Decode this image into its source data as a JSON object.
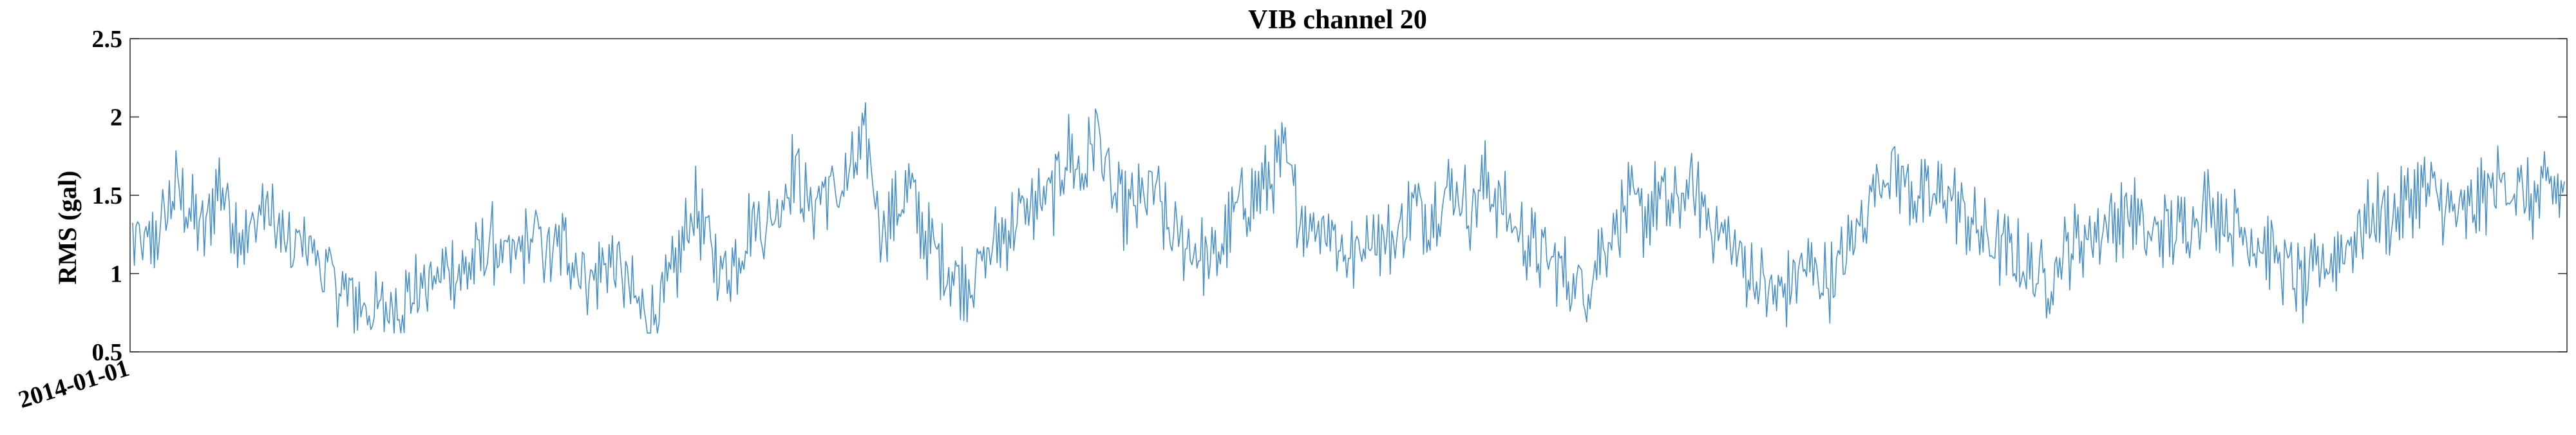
{
  "chart_data": {
    "type": "line",
    "title": "VIB channel 20",
    "xlabel": "",
    "ylabel": "RMS (gal)",
    "ylim": [
      0.5,
      2.5
    ],
    "y_ticks": [
      0.5,
      1,
      1.5,
      2,
      2.5
    ],
    "y_tick_labels": [
      "0.5",
      "1",
      "1.5",
      "2",
      "2.5"
    ],
    "x_tick_labels": [
      "2014-01-01"
    ],
    "x_range": [
      0,
      1460
    ],
    "grid": false,
    "legend": "none",
    "series_color": "#4a90c8",
    "series": [
      {
        "values": [
          1.2,
          1.15,
          1.3,
          1.55,
          1.4,
          1.25,
          1.6,
          1.35,
          1.2,
          1.45,
          1.3,
          1.1,
          1.25,
          1.05,
          0.95,
          0.85,
          0.8,
          0.75,
          0.78,
          0.85,
          0.9,
          0.95,
          1.05,
          1.0,
          1.1,
          1.2,
          1.05,
          1.15,
          1.25,
          1.1,
          1.2,
          1.05,
          0.95,
          1.1,
          1.0,
          0.8,
          0.7,
          0.85,
          1.1,
          1.45,
          1.2,
          1.0,
          1.1,
          1.35,
          1.3,
          1.45,
          1.7,
          1.4,
          1.55,
          1.5,
          1.65,
          1.85,
          1.3,
          1.4,
          1.55,
          1.25,
          1.1,
          1.0,
          0.95,
          1.05,
          1.2,
          1.3,
          1.4,
          1.45,
          1.5,
          1.8,
          1.6,
          1.95,
          1.5,
          1.4,
          1.45,
          1.55,
          1.25,
          1.2,
          1.15,
          1.05,
          1.25,
          1.45,
          1.5,
          1.6,
          1.75,
          1.4,
          1.3,
          1.35,
          1.15,
          1.1,
          1.3,
          1.2,
          1.25,
          1.45,
          1.35,
          1.5,
          1.55,
          1.4,
          1.6,
          1.45,
          1.3,
          1.2,
          1.1,
          1.05,
          0.95,
          0.9,
          1.15,
          1.3,
          1.45,
          1.35,
          1.5,
          1.4,
          1.55,
          1.45,
          1.3,
          1.2,
          1.05,
          0.95,
          0.85,
          0.9,
          1.05,
          1.0,
          0.95,
          1.1,
          1.3,
          1.55,
          1.7,
          1.6,
          1.5,
          1.45,
          1.55,
          1.4,
          1.3,
          1.2,
          1.15,
          1.1,
          1.0,
          0.95,
          1.1,
          1.2,
          1.25,
          1.3,
          1.35,
          1.4,
          1.2,
          1.3,
          1.25,
          1.35,
          1.45,
          1.4,
          1.3,
          1.25,
          1.2,
          1.1,
          1.0,
          0.9,
          1.05,
          1.1,
          1.2,
          1.3,
          1.4,
          1.35,
          1.45,
          1.55,
          1.5,
          1.4,
          1.35,
          1.45,
          1.55,
          1.6,
          1.5,
          1.45,
          1.55,
          1.5
        ]
      }
    ]
  }
}
